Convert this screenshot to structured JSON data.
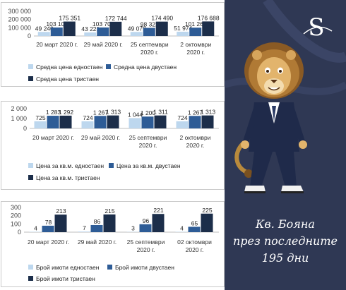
{
  "colors": {
    "single": "#bdd7ee",
    "double": "#2e5c96",
    "triple": "#1c2e4a",
    "sidebar": "#2f3854"
  },
  "sidebar": {
    "logo_letter": "S",
    "title_lines": [
      "Кв. Бояна",
      "през последните",
      "195 дни"
    ]
  },
  "chart_data": [
    {
      "type": "bar",
      "categories": [
        [
          "20 март 2020 г."
        ],
        [
          "29 май 2020 г."
        ],
        [
          "25 септември",
          "2020 г."
        ],
        [
          "2 октомври",
          "2020 г."
        ]
      ],
      "series": [
        {
          "name": "Средна цена едностаен",
          "values": [
            49240,
            43221,
            49079,
            51974
          ]
        },
        {
          "name": "Средна цена двустаен",
          "values": [
            103108,
            103705,
            98322,
            101260
          ]
        },
        {
          "name": "Средна цена тристаен",
          "values": [
            175351,
            172744,
            174490,
            176688
          ]
        }
      ],
      "data_labels": [
        [
          "49 240",
          "43 221",
          "49 079",
          "51 974"
        ],
        [
          "103 108",
          "103 705",
          "98 322",
          "101 260"
        ],
        [
          "175 351",
          "172 744",
          "174 490",
          "176 688"
        ]
      ],
      "ylim": [
        0,
        300000
      ],
      "yticks": [
        0,
        100000,
        200000,
        300000
      ],
      "ytick_labels": [
        "0",
        "100 000",
        "200 000",
        "300 000"
      ],
      "grid": false,
      "legend": "bottom-left"
    },
    {
      "type": "bar",
      "categories": [
        [
          "20 март 2020 г."
        ],
        [
          "29 май 2020 г."
        ],
        [
          "25 септември",
          "2020 г."
        ],
        [
          "2 октомври",
          "2020 г."
        ]
      ],
      "series": [
        {
          "name": "Цена за кв.м. едностаен",
          "values": [
            725,
            724,
            1044,
            724
          ]
        },
        {
          "name": "Цена за кв.м. двустаен",
          "values": [
            1283,
            1267,
            1200,
            1267
          ]
        },
        {
          "name": "Цена за кв.м. тристаен",
          "values": [
            1292,
            1313,
            1311,
            1313
          ]
        }
      ],
      "data_labels": [
        [
          "725",
          "724",
          "1 044",
          "724"
        ],
        [
          "1 283",
          "1 267",
          "1 200",
          "1 267"
        ],
        [
          "1 292",
          "1 313",
          "1 311",
          "1 313"
        ]
      ],
      "ylim": [
        0,
        2000
      ],
      "yticks": [
        0,
        1000,
        2000
      ],
      "ytick_labels": [
        "0",
        "1 000",
        "2 000"
      ],
      "grid": false,
      "legend": "bottom-left"
    },
    {
      "type": "bar",
      "categories": [
        [
          "20 март 2020 г."
        ],
        [
          "29 май 2020 г."
        ],
        [
          "25 септември",
          "2020 г."
        ],
        [
          "02 октомври",
          "2020 г."
        ]
      ],
      "series": [
        {
          "name": "Брой имоти едностаен",
          "values": [
            4,
            7,
            3,
            4
          ]
        },
        {
          "name": "Брой имоти двустаен",
          "values": [
            78,
            86,
            96,
            65
          ]
        },
        {
          "name": "Брой имоти тристаен",
          "values": [
            213,
            215,
            221,
            225
          ]
        }
      ],
      "data_labels": [
        [
          "4",
          "7",
          "3",
          "4"
        ],
        [
          "78",
          "86",
          "96",
          "65"
        ],
        [
          "213",
          "215",
          "221",
          "225"
        ]
      ],
      "ylim": [
        0,
        300
      ],
      "yticks": [
        0,
        100,
        200,
        300
      ],
      "ytick_labels": [
        "0",
        "100",
        "200",
        "300"
      ],
      "grid": false,
      "legend": "bottom-left"
    }
  ]
}
